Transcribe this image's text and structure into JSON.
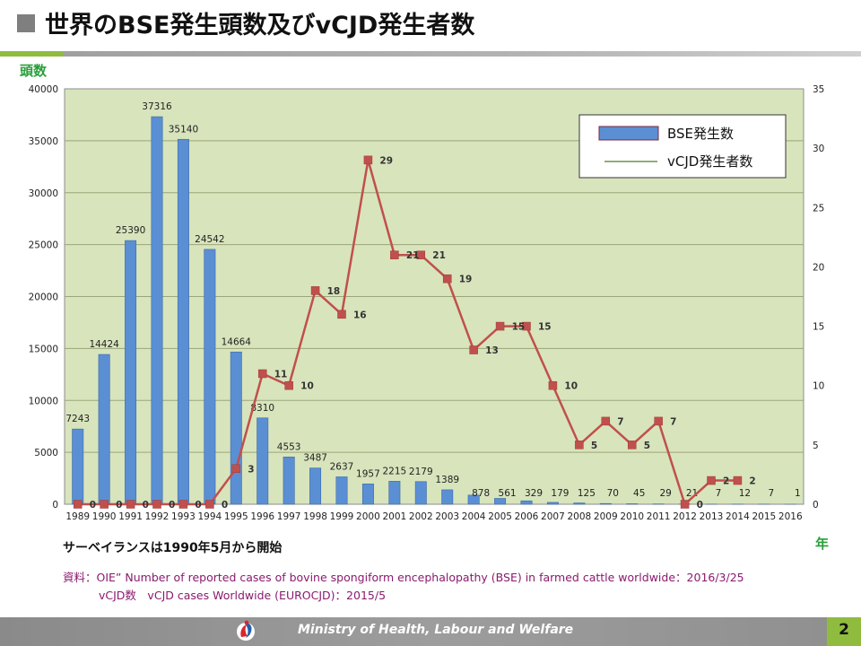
{
  "header": {
    "title": "世界のBSE発生頭数及びvCJD発生者数"
  },
  "chart_data": {
    "type": "bar",
    "categories": [
      "1989",
      "1990",
      "1991",
      "1992",
      "1993",
      "1994",
      "1995",
      "1996",
      "1997",
      "1998",
      "1999",
      "2000",
      "2001",
      "2002",
      "2003",
      "2004",
      "2005",
      "2006",
      "2007",
      "2008",
      "2009",
      "2010",
      "2011",
      "2012",
      "2013",
      "2014",
      "2015",
      "2016"
    ],
    "series": [
      {
        "name": "BSE発生数",
        "type": "bar",
        "axis": "left",
        "color": "#5b8fd4",
        "values": [
          7243,
          14424,
          25390,
          37316,
          35140,
          24542,
          14664,
          8310,
          4553,
          3487,
          2637,
          1957,
          2215,
          2179,
          1389,
          878,
          561,
          329,
          179,
          125,
          70,
          45,
          29,
          21,
          7,
          12,
          7,
          1
        ]
      },
      {
        "name": "vCJD発生者数",
        "type": "line",
        "axis": "right",
        "color": "#c0504d",
        "values": [
          0,
          0,
          0,
          0,
          0,
          0,
          3,
          11,
          10,
          18,
          16,
          29,
          21,
          21,
          19,
          13,
          15,
          15,
          10,
          5,
          7,
          5,
          7,
          0,
          2,
          2,
          null,
          null
        ]
      }
    ],
    "ylabel": "頭数",
    "xlabel": "年",
    "ylim": [
      0,
      40000
    ],
    "y_ticks": [
      0,
      5000,
      10000,
      15000,
      20000,
      25000,
      30000,
      35000,
      40000
    ],
    "y2lim": [
      0,
      35
    ],
    "y2_ticks": [
      0,
      5,
      10,
      15,
      20,
      25,
      30,
      35
    ],
    "grid": true,
    "legend": "top-right",
    "plot_background": "#d8e4bc",
    "grid_color": "#9aa77a",
    "line_label_color": "#333333"
  },
  "notes": {
    "surveillance": "サーベイランスは1990年5月から開始",
    "source_line1": "資料：OIE” Number of reported cases of bovine spongiform encephalopathy (BSE) in farmed cattle worldwide：2016/3/25",
    "source_line2": "vCJD数　vCJD cases Worldwide (EUROCJD)：2015/5"
  },
  "footer": {
    "organization": "Ministry of Health, Labour and Welfare",
    "page_number": "2"
  }
}
